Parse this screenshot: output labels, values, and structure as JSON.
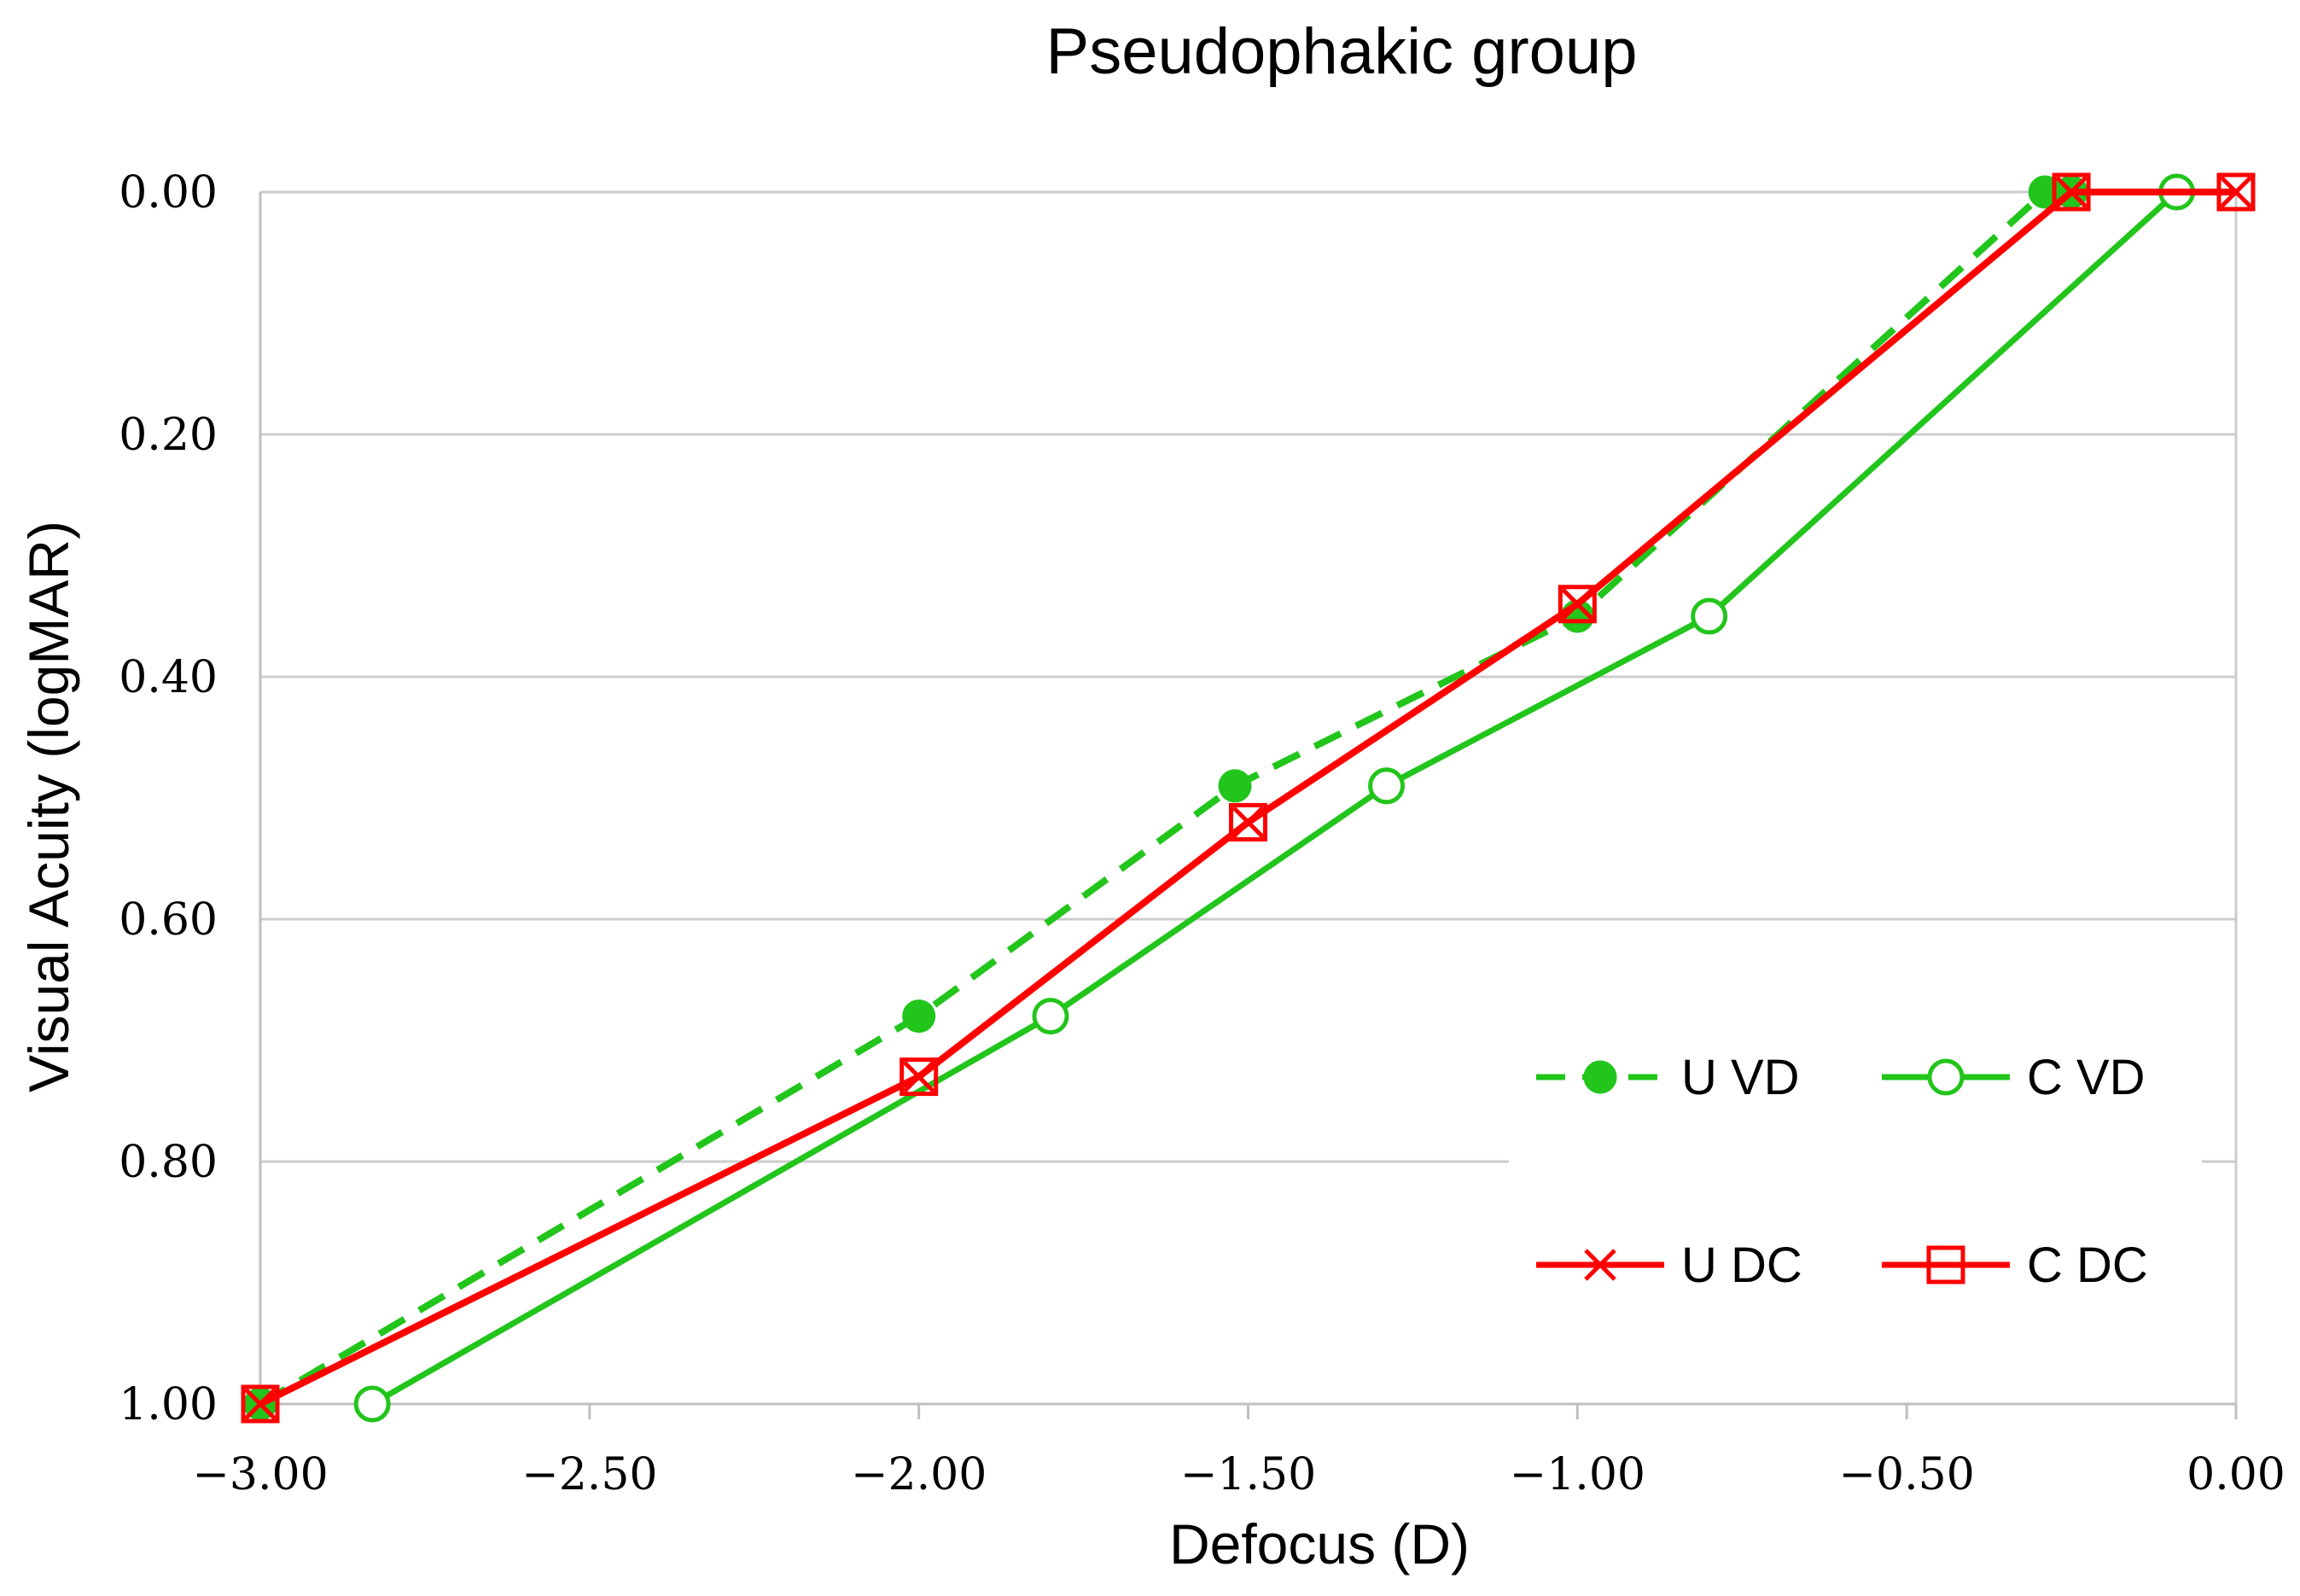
{
  "chart_data": {
    "type": "line",
    "title": "Pseudophakic group",
    "xlabel": "Defocus (D)",
    "ylabel": "Visual Acuity (logMAR)",
    "xlim": [
      -3.0,
      0.0
    ],
    "ylim": [
      1.0,
      0.0
    ],
    "y_inverted": true,
    "grid": "horizontal",
    "x_ticks": [
      -3.0,
      -2.5,
      -2.0,
      -1.5,
      -1.0,
      -0.5,
      0.0
    ],
    "x_tick_labels": [
      "−3.00",
      "−2.50",
      "−2.00",
      "−1.50",
      "−1.00",
      "−0.50",
      "0.00"
    ],
    "y_ticks": [
      0.0,
      0.2,
      0.4,
      0.6,
      0.8,
      1.0
    ],
    "y_tick_labels": [
      "0.00",
      "0.20",
      "0.40",
      "0.60",
      "0.80",
      "1.00"
    ],
    "legend_position": "bottom-right",
    "series": [
      {
        "name": "U VD",
        "color": "#22c51b",
        "line": "dashed",
        "marker": "filled-circle",
        "points": [
          [
            -3.0,
            1.0
          ],
          [
            -2.0,
            0.68
          ],
          [
            -1.52,
            0.49
          ],
          [
            -1.0,
            0.35
          ],
          [
            -0.29,
            0.0
          ],
          [
            -0.25,
            0.0
          ]
        ]
      },
      {
        "name": "C VD",
        "color": "#22c51b",
        "line": "solid",
        "marker": "open-circle",
        "points": [
          [
            -2.83,
            1.0
          ],
          [
            -1.8,
            0.68
          ],
          [
            -1.29,
            0.49
          ],
          [
            -0.8,
            0.35
          ],
          [
            -0.09,
            0.0
          ]
        ]
      },
      {
        "name": "U DC",
        "color": "#ff0000",
        "line": "solid",
        "marker": "x",
        "points": [
          [
            -3.0,
            1.0
          ],
          [
            -2.0,
            0.73
          ],
          [
            -1.5,
            0.52
          ],
          [
            -1.0,
            0.34
          ],
          [
            -0.25,
            0.0
          ],
          [
            0.0,
            0.0
          ]
        ]
      },
      {
        "name": "C DC",
        "color": "#ff0000",
        "line": "solid",
        "marker": "open-square",
        "points": [
          [
            -3.0,
            1.0
          ],
          [
            -2.0,
            0.73
          ],
          [
            -1.5,
            0.52
          ],
          [
            -1.0,
            0.34
          ],
          [
            -0.25,
            0.0
          ],
          [
            0.0,
            0.0
          ]
        ]
      }
    ]
  }
}
